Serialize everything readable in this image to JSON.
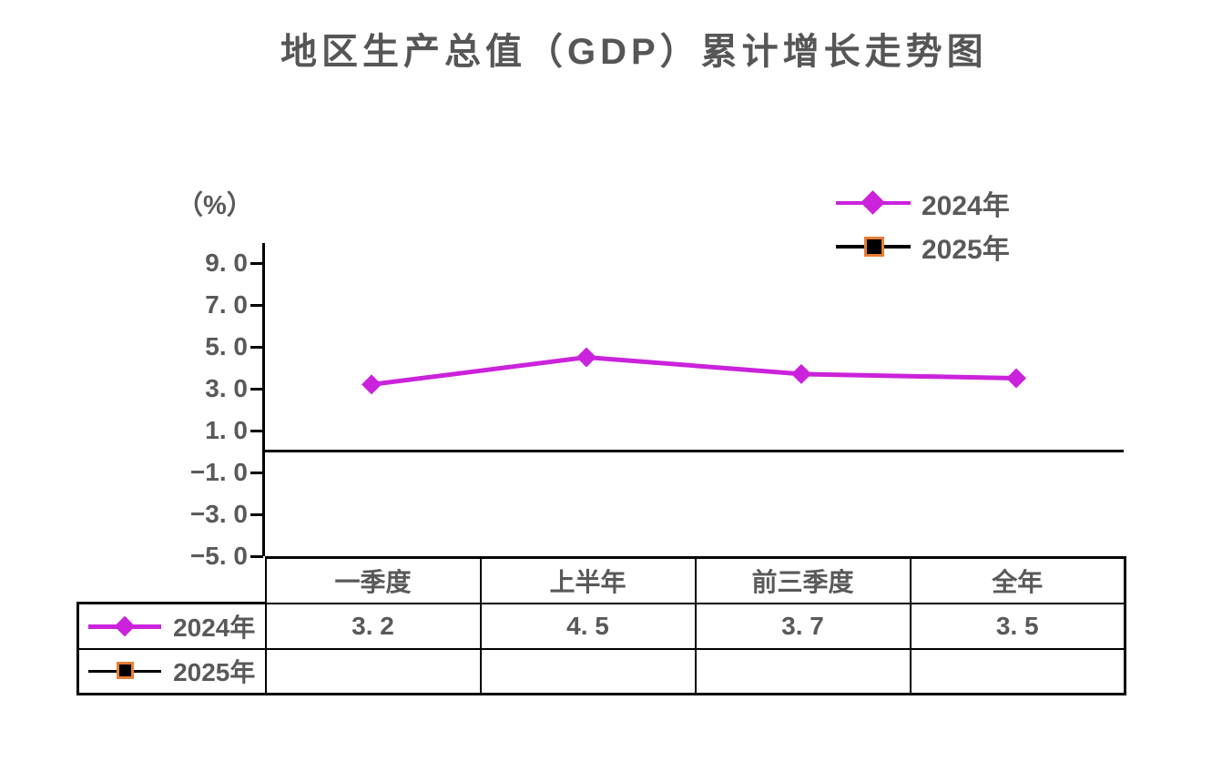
{
  "title": "地区生产总值（GDP）累计增长走势图",
  "y_axis": {
    "unit_label": "（%）",
    "tick_labels": [
      "9. 0",
      "7. 0",
      "5. 0",
      "3. 0",
      "1. 0",
      "−1. 0",
      "−3. 0",
      "−5. 0"
    ],
    "tick_values": [
      9,
      7,
      5,
      3,
      1,
      -1,
      -3,
      -5
    ]
  },
  "legend": {
    "items": [
      {
        "label": "2024年",
        "marker": "diamond"
      },
      {
        "label": "2025年",
        "marker": "square"
      }
    ]
  },
  "table": {
    "columns": [
      "一季度",
      "上半年",
      "前三季度",
      "全年"
    ],
    "rows": [
      {
        "label": "2024年",
        "values": [
          "3. 2",
          "4. 5",
          "3. 7",
          "3. 5"
        ]
      },
      {
        "label": "2025年",
        "values": [
          "",
          "",
          "",
          ""
        ]
      }
    ]
  },
  "chart_data": {
    "type": "line",
    "title": "地区生产总值（GDP）累计增长走势图",
    "ylabel": "（%）",
    "categories": [
      "一季度",
      "上半年",
      "前三季度",
      "全年"
    ],
    "series": [
      {
        "name": "2024",
        "label": "2024年",
        "values": [
          3.2,
          4.5,
          3.7,
          3.5
        ],
        "color": "#CB22DB",
        "marker": "diamond"
      },
      {
        "name": "2025",
        "label": "2025年",
        "values": [
          null,
          null,
          null,
          null
        ],
        "color": "#000000",
        "marker": "square",
        "marker_border": "#E87E33"
      }
    ],
    "ylim": [
      -5,
      10
    ],
    "yticks": [
      9,
      7,
      5,
      3,
      1,
      -1,
      -3,
      -5
    ],
    "zero_baseline": true,
    "grid": false,
    "legend_position": "top-right"
  },
  "colors": {
    "series_2024": "#CB22DB",
    "series_2025": "#000000",
    "marker_2025_border": "#E87E33",
    "text": "#595959",
    "axis": "#000000",
    "background": "#FFFFFF"
  }
}
